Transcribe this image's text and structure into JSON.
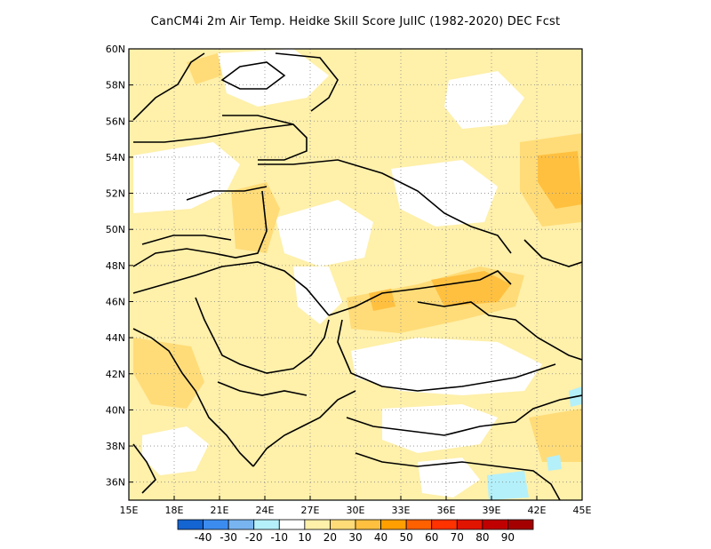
{
  "title": "CanCM4i  2m Air Temp. Heidke Skill Score JulIC (1982-2020) DEC Fcst",
  "map": {
    "lon_labels": [
      "15E",
      "18E",
      "21E",
      "24E",
      "27E",
      "30E",
      "33E",
      "36E",
      "39E",
      "42E",
      "45E"
    ],
    "lat_labels": [
      "60N",
      "58N",
      "56N",
      "54N",
      "52N",
      "50N",
      "48N",
      "46N",
      "44N",
      "42N",
      "40N",
      "38N",
      "36N"
    ],
    "lon_range": [
      15,
      45
    ],
    "lat_range": [
      35,
      60
    ]
  },
  "colorbar": {
    "labels": [
      "-40",
      "-30",
      "-20",
      "-10",
      "10",
      "20",
      "30",
      "40",
      "50",
      "60",
      "70",
      "80",
      "90"
    ],
    "colors": [
      "#1464d2",
      "#3c8cf0",
      "#78b4f0",
      "#b4f0fa",
      "#ffffff",
      "#fff0aa",
      "#ffdc78",
      "#ffc040",
      "#ffa000",
      "#ff6000",
      "#ff3200",
      "#e11400",
      "#c00000",
      "#a50000"
    ]
  },
  "regions": [
    {
      "name": "skill-20-30-northeast",
      "level": 2,
      "color": "#ffdc78"
    },
    {
      "name": "skill-30-40-east-russia",
      "level": 3,
      "color": "#ffc040"
    },
    {
      "name": "skill-30-40-crimea",
      "level": 3,
      "color": "#ffc040"
    },
    {
      "name": "skill-negative-turkey-southeast",
      "level": -1,
      "color": "#b4f0fa"
    }
  ]
}
